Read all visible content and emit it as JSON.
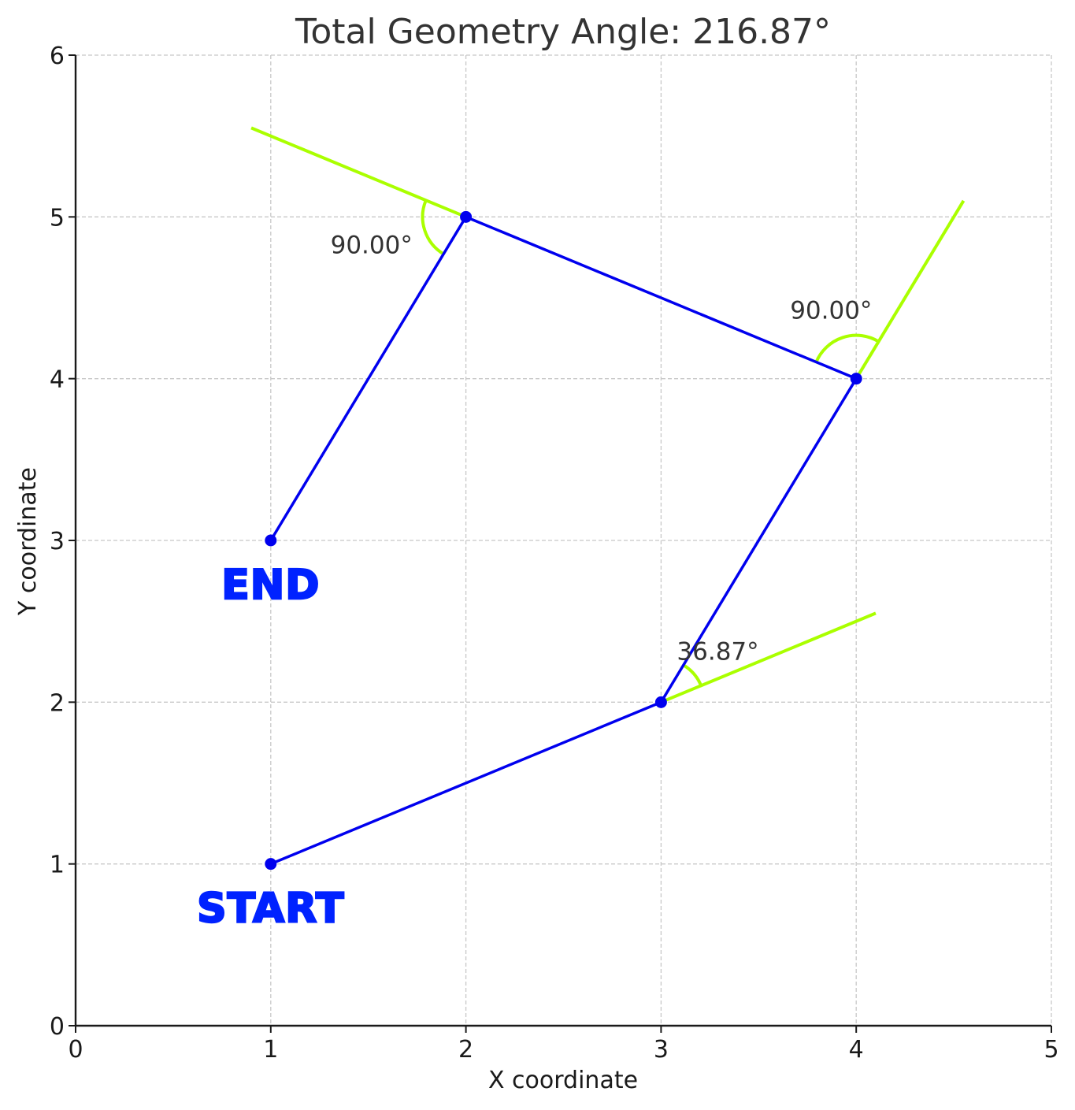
{
  "chart_data": {
    "type": "line",
    "title": "Total Geometry Angle: 216.87°",
    "xlabel": "X coordinate",
    "ylabel": "Y coordinate",
    "xlim": [
      0,
      5
    ],
    "ylim": [
      0,
      6
    ],
    "x_ticks": [
      "0",
      "1",
      "2",
      "3",
      "4",
      "5"
    ],
    "y_ticks": [
      "0",
      "1",
      "2",
      "3",
      "4",
      "5",
      "6"
    ],
    "grid": true,
    "path": {
      "x": [
        1,
        3,
        4,
        2,
        1
      ],
      "y": [
        1,
        2,
        4,
        5,
        3
      ]
    },
    "angles": [
      {
        "vertex": [
          3,
          2
        ],
        "value": 36.87,
        "label": "36.87°"
      },
      {
        "vertex": [
          4,
          4
        ],
        "value": 90.0,
        "label": "90.00°"
      },
      {
        "vertex": [
          2,
          5
        ],
        "value": 90.0,
        "label": "90.00°"
      }
    ],
    "markers": [
      {
        "text": "START",
        "point": [
          1,
          1
        ]
      },
      {
        "text": "END",
        "point": [
          1,
          3
        ]
      }
    ],
    "colors": {
      "path": "#0000ee",
      "extension": "#aaff00",
      "marker_text": "#0022ff",
      "grid": "#c8c8c8",
      "axis": "#1a1a1a"
    }
  }
}
